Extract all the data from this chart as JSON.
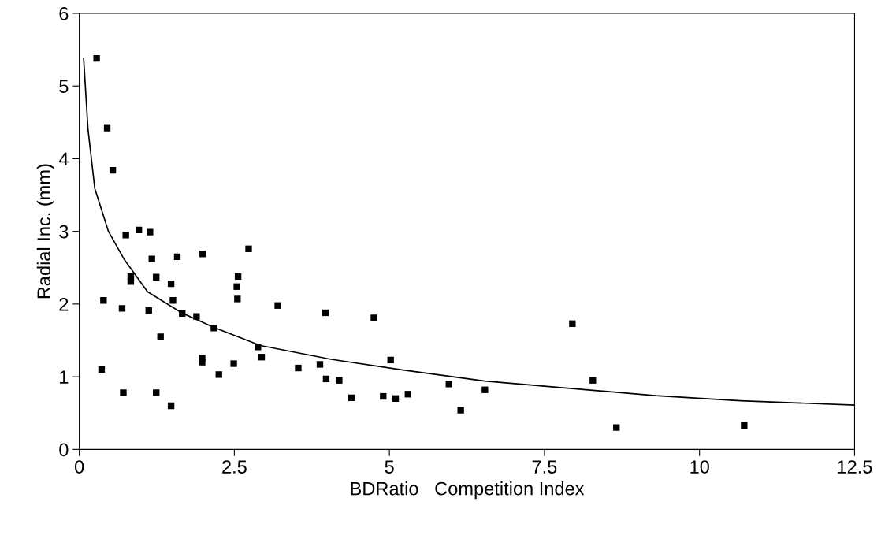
{
  "chart_data": {
    "type": "scatter",
    "xlabel": "BDRatio   Competition Index",
    "ylabel": "Radial Inc. (mm)",
    "xlim": [
      0,
      12.5
    ],
    "xticks": [
      0,
      2.5,
      5,
      7.5,
      10,
      12.5
    ],
    "ylim": [
      0,
      6
    ],
    "yticks": [
      0,
      1,
      2,
      3,
      4,
      5,
      6
    ],
    "grid": false,
    "legend": false,
    "series": [
      {
        "color": "#000000",
        "marker": "square",
        "x": [
          0.28,
          0.45,
          0.54,
          0.75,
          0.96,
          1.14,
          1.17,
          1.58,
          1.99,
          2.73,
          0.83,
          0.83,
          1.24,
          1.48,
          2.56,
          2.54,
          2.55,
          0.39,
          1.51,
          0.69,
          1.12,
          1.66,
          1.89,
          2.17,
          3.2,
          3.97,
          1.31,
          2.88,
          2.94,
          1.98,
          1.98,
          2.49,
          2.25,
          0.36,
          3.53,
          3.88,
          3.98,
          4.19,
          0.71,
          1.24,
          1.48,
          4.39,
          4.75,
          5.02,
          4.9,
          5.1,
          5.3,
          5.96,
          6.15,
          6.54,
          7.95,
          8.28,
          8.66,
          10.72
        ],
        "values": [
          5.38,
          4.42,
          3.84,
          2.95,
          3.02,
          2.99,
          2.62,
          2.65,
          2.69,
          2.76,
          2.38,
          2.31,
          2.37,
          2.28,
          2.38,
          2.24,
          2.07,
          2.05,
          2.05,
          1.94,
          1.91,
          1.87,
          1.83,
          1.67,
          1.98,
          1.88,
          1.55,
          1.41,
          1.27,
          1.26,
          1.2,
          1.18,
          1.03,
          1.1,
          1.12,
          1.17,
          0.97,
          0.95,
          0.78,
          0.78,
          0.6,
          0.71,
          1.81,
          1.23,
          0.73,
          0.7,
          0.76,
          0.9,
          0.54,
          0.82,
          1.73,
          0.95,
          0.3,
          0.33
        ]
      },
      {
        "type": "line",
        "color": "#000000",
        "marker": "none",
        "line_style": "solid",
        "x": [
          0.07,
          0.14,
          0.25,
          0.47,
          0.72,
          1.1,
          1.65,
          2.17,
          2.92,
          4.06,
          5.16,
          6.54,
          7.91,
          9.29,
          10.66,
          12.5
        ],
        "values": [
          5.38,
          4.41,
          3.59,
          3.0,
          2.62,
          2.17,
          1.88,
          1.68,
          1.43,
          1.24,
          1.1,
          0.94,
          0.84,
          0.74,
          0.67,
          0.61
        ]
      }
    ]
  }
}
